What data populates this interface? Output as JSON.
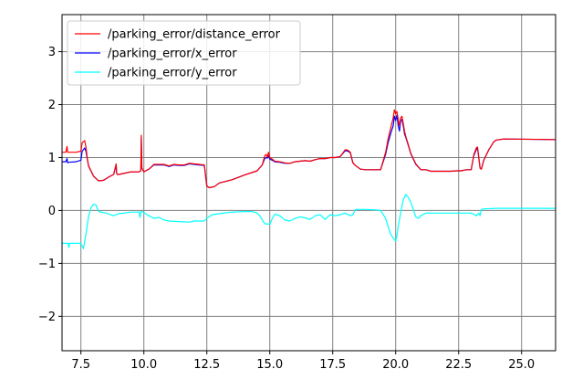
{
  "chart_data": {
    "type": "line",
    "title": "",
    "xlabel": "",
    "ylabel": "",
    "xlim": [
      6.75,
      26.35
    ],
    "ylim": [
      -2.65,
      3.7
    ],
    "xticks": [
      7.5,
      10.0,
      12.5,
      15.0,
      17.5,
      20.0,
      22.5,
      25.0
    ],
    "xtick_labels": [
      "7.5",
      "10.0",
      "12.5",
      "15.0",
      "17.5",
      "20.0",
      "22.5",
      "25.0"
    ],
    "yticks": [
      -2,
      -1,
      0,
      1,
      2,
      3
    ],
    "ytick_labels": [
      "−2",
      "−1",
      "0",
      "1",
      "2",
      "3"
    ],
    "grid": true,
    "legend_position": "top-left",
    "series": [
      {
        "name": "/parking_error/distance_error",
        "color": "#ff0000",
        "x": [
          6.75,
          6.9,
          6.95,
          6.97,
          7.0,
          7.3,
          7.5,
          7.55,
          7.6,
          7.65,
          7.7,
          7.75,
          7.8,
          8.0,
          8.2,
          8.4,
          8.6,
          8.8,
          8.9,
          8.92,
          8.95,
          9.0,
          9.2,
          9.5,
          9.8,
          9.88,
          9.9,
          9.92,
          10.0,
          10.2,
          10.4,
          10.6,
          10.8,
          11.0,
          11.2,
          11.4,
          11.6,
          11.8,
          12.0,
          12.2,
          12.4,
          12.5,
          12.6,
          12.8,
          13.0,
          13.5,
          14.0,
          14.5,
          14.7,
          14.8,
          14.85,
          14.9,
          14.95,
          15.0,
          15.1,
          15.2,
          15.4,
          15.6,
          15.8,
          16.0,
          16.2,
          16.4,
          16.6,
          16.8,
          17.0,
          17.2,
          17.4,
          17.6,
          17.8,
          18.0,
          18.1,
          18.2,
          18.3,
          18.4,
          18.6,
          18.8,
          19.0,
          19.2,
          19.4,
          19.6,
          19.7,
          19.8,
          19.9,
          19.95,
          20.0,
          20.05,
          20.1,
          20.15,
          20.2,
          20.25,
          20.3,
          20.35,
          20.4,
          20.5,
          20.6,
          20.8,
          21.0,
          21.2,
          21.4,
          21.6,
          21.8,
          22.0,
          22.2,
          22.4,
          22.6,
          22.8,
          23.0,
          23.1,
          23.2,
          23.25,
          23.3,
          23.35,
          23.4,
          23.5,
          23.7,
          23.9,
          24.0,
          24.3,
          26.35
        ],
        "y": [
          1.1,
          1.1,
          1.21,
          1.1,
          1.1,
          1.1,
          1.12,
          1.28,
          1.3,
          1.32,
          1.2,
          1.0,
          0.85,
          0.65,
          0.56,
          0.57,
          0.63,
          0.68,
          0.88,
          0.7,
          0.68,
          0.68,
          0.7,
          0.73,
          0.73,
          0.75,
          1.42,
          0.8,
          0.73,
          0.78,
          0.87,
          0.87,
          0.87,
          0.84,
          0.87,
          0.86,
          0.86,
          0.89,
          0.88,
          0.87,
          0.86,
          0.46,
          0.43,
          0.45,
          0.52,
          0.58,
          0.67,
          0.75,
          0.86,
          1.03,
          1.06,
          1.01,
          1.1,
          1.0,
          0.97,
          0.93,
          0.92,
          0.9,
          0.89,
          0.92,
          0.93,
          0.94,
          0.93,
          0.96,
          0.98,
          0.98,
          1.0,
          1.0,
          1.02,
          1.15,
          1.14,
          1.1,
          0.9,
          0.85,
          0.78,
          0.77,
          0.77,
          0.77,
          0.77,
          1.1,
          1.35,
          1.55,
          1.75,
          1.9,
          1.83,
          1.87,
          1.72,
          1.6,
          1.75,
          1.78,
          1.65,
          1.5,
          1.4,
          1.25,
          1.08,
          0.88,
          0.77,
          0.77,
          0.74,
          0.74,
          0.74,
          0.74,
          0.74,
          0.75,
          0.75,
          0.77,
          0.77,
          1.05,
          1.18,
          1.2,
          1.0,
          0.8,
          0.78,
          0.95,
          1.15,
          1.3,
          1.33,
          1.35,
          1.34
        ]
      },
      {
        "name": "/parking_error/x_error",
        "color": "#0000ff",
        "x": [
          6.75,
          6.9,
          6.95,
          6.97,
          7.0,
          7.3,
          7.5,
          7.55,
          7.6,
          7.65,
          7.7,
          7.75,
          7.8,
          8.0,
          8.2,
          8.4,
          8.6,
          8.8,
          8.9,
          8.92,
          8.95,
          9.0,
          9.2,
          9.5,
          9.8,
          9.88,
          9.9,
          9.92,
          10.0,
          10.2,
          10.4,
          10.6,
          10.8,
          11.0,
          11.2,
          11.4,
          11.6,
          11.8,
          12.0,
          12.2,
          12.4,
          12.5,
          12.6,
          12.8,
          13.0,
          13.5,
          14.0,
          14.5,
          14.7,
          14.8,
          14.85,
          14.9,
          14.95,
          15.0,
          15.1,
          15.2,
          15.4,
          15.6,
          15.8,
          16.0,
          16.2,
          16.4,
          16.6,
          16.8,
          17.0,
          17.2,
          17.4,
          17.6,
          17.8,
          18.0,
          18.1,
          18.2,
          18.3,
          18.4,
          18.6,
          18.8,
          19.0,
          19.2,
          19.4,
          19.6,
          19.7,
          19.8,
          19.9,
          19.95,
          20.0,
          20.05,
          20.1,
          20.15,
          20.2,
          20.25,
          20.3,
          20.35,
          20.4,
          20.5,
          20.6,
          20.8,
          21.0,
          21.2,
          21.4,
          21.6,
          21.8,
          22.0,
          22.2,
          22.4,
          22.6,
          22.8,
          23.0,
          23.1,
          23.2,
          23.25,
          23.3,
          23.35,
          23.4,
          23.5,
          23.7,
          23.9,
          24.0,
          24.3,
          26.35
        ],
        "y": [
          0.92,
          0.92,
          0.98,
          0.9,
          0.91,
          0.92,
          0.95,
          1.12,
          1.15,
          1.18,
          1.12,
          0.98,
          0.84,
          0.65,
          0.56,
          0.57,
          0.63,
          0.68,
          0.85,
          0.7,
          0.68,
          0.68,
          0.7,
          0.73,
          0.73,
          0.75,
          1.38,
          0.8,
          0.73,
          0.78,
          0.86,
          0.86,
          0.86,
          0.83,
          0.86,
          0.85,
          0.85,
          0.88,
          0.87,
          0.86,
          0.85,
          0.46,
          0.43,
          0.45,
          0.52,
          0.58,
          0.67,
          0.75,
          0.86,
          0.98,
          1.0,
          0.99,
          1.03,
          0.97,
          0.95,
          0.92,
          0.91,
          0.89,
          0.89,
          0.92,
          0.93,
          0.94,
          0.93,
          0.96,
          0.98,
          0.98,
          1.0,
          1.0,
          1.02,
          1.13,
          1.12,
          1.09,
          0.9,
          0.85,
          0.78,
          0.77,
          0.77,
          0.77,
          0.77,
          1.06,
          1.28,
          1.45,
          1.6,
          1.78,
          1.7,
          1.8,
          1.6,
          1.5,
          1.7,
          1.72,
          1.6,
          1.45,
          1.38,
          1.23,
          1.07,
          0.87,
          0.77,
          0.77,
          0.74,
          0.74,
          0.74,
          0.74,
          0.74,
          0.75,
          0.75,
          0.77,
          0.77,
          1.03,
          1.15,
          1.18,
          1.0,
          0.8,
          0.78,
          0.95,
          1.15,
          1.3,
          1.33,
          1.35,
          1.34
        ]
      },
      {
        "name": "/parking_error/y_error",
        "color": "#00ffff",
        "x": [
          6.75,
          6.9,
          7.0,
          7.02,
          7.05,
          7.3,
          7.5,
          7.6,
          7.7,
          7.8,
          7.9,
          8.0,
          8.1,
          8.2,
          8.5,
          8.8,
          9.0,
          9.2,
          9.5,
          9.8,
          9.85,
          9.88,
          9.92,
          10.0,
          10.2,
          10.4,
          10.6,
          10.8,
          11.0,
          11.4,
          11.8,
          12.0,
          12.2,
          12.4,
          12.5,
          12.7,
          13.0,
          13.5,
          14.0,
          14.3,
          14.5,
          14.6,
          14.8,
          15.0,
          15.1,
          15.2,
          15.4,
          15.6,
          15.8,
          16.0,
          16.2,
          16.4,
          16.6,
          16.8,
          17.0,
          17.2,
          17.4,
          17.6,
          17.8,
          18.0,
          18.2,
          18.3,
          18.4,
          18.8,
          19.2,
          19.4,
          19.6,
          19.7,
          19.8,
          19.9,
          20.0,
          20.05,
          20.1,
          20.2,
          20.3,
          20.4,
          20.5,
          20.6,
          20.7,
          20.8,
          20.9,
          21.0,
          21.2,
          21.5,
          22.0,
          22.5,
          22.8,
          23.0,
          23.2,
          23.3,
          23.35,
          23.4,
          23.5,
          24.0,
          24.5,
          25.0,
          26.35
        ],
        "y": [
          -0.62,
          -0.62,
          -0.62,
          -0.7,
          -0.62,
          -0.62,
          -0.62,
          -0.72,
          -0.45,
          -0.12,
          0.05,
          0.12,
          0.1,
          -0.02,
          -0.05,
          -0.1,
          -0.06,
          -0.05,
          -0.03,
          -0.03,
          -0.13,
          -0.02,
          -0.02,
          -0.04,
          -0.1,
          -0.15,
          -0.13,
          -0.18,
          -0.2,
          -0.21,
          -0.22,
          -0.2,
          -0.2,
          -0.2,
          -0.15,
          -0.08,
          -0.06,
          -0.03,
          -0.02,
          -0.02,
          -0.05,
          -0.1,
          -0.25,
          -0.26,
          -0.15,
          -0.07,
          -0.1,
          -0.18,
          -0.2,
          -0.15,
          -0.12,
          -0.14,
          -0.17,
          -0.1,
          -0.08,
          -0.17,
          -0.08,
          -0.1,
          -0.08,
          -0.05,
          -0.1,
          -0.08,
          0.02,
          0.02,
          0.01,
          0.0,
          -0.15,
          -0.3,
          -0.45,
          -0.52,
          -0.58,
          -0.48,
          -0.3,
          -0.05,
          0.2,
          0.3,
          0.25,
          0.15,
          0.02,
          -0.12,
          -0.15,
          -0.1,
          -0.05,
          -0.05,
          -0.05,
          -0.05,
          -0.05,
          -0.05,
          -0.1,
          -0.05,
          -0.1,
          0.02,
          0.03,
          0.04,
          0.04,
          0.04,
          0.04
        ]
      }
    ]
  }
}
